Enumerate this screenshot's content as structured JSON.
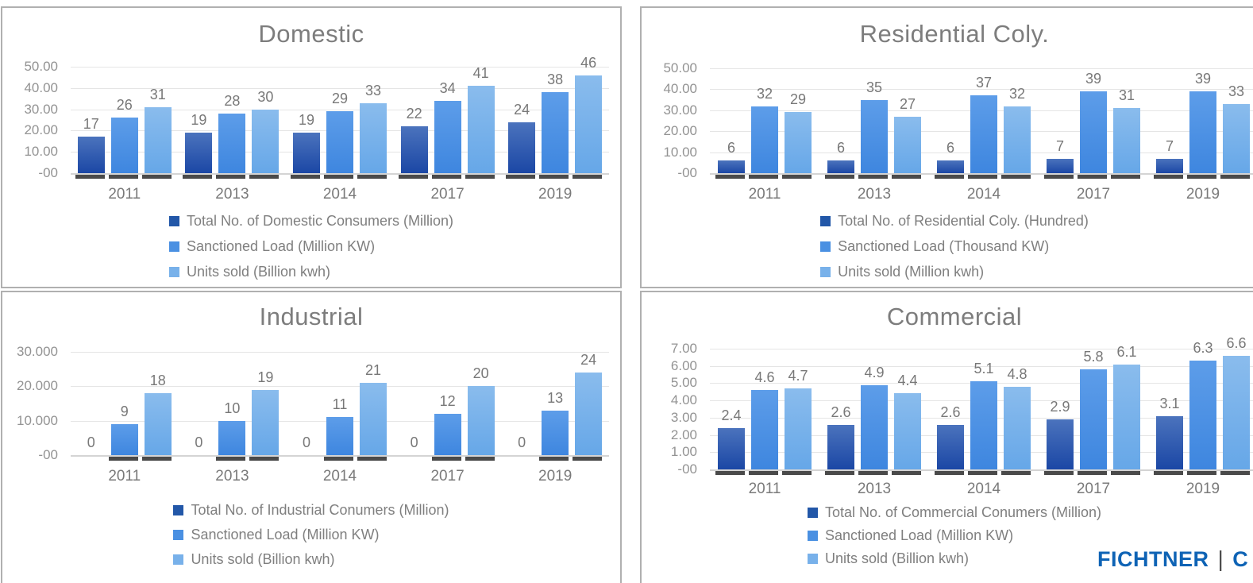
{
  "page": {
    "background": "#ffffff"
  },
  "footer": {
    "brand": "FICHTNER",
    "divider": "|",
    "partial_next_letter": "C",
    "brand_color": "#0e63b5",
    "divider_color": "#4d4d4d"
  },
  "palette": {
    "grid_line": "#e5e5e5",
    "axis_line": "#d4d4d4",
    "shadow": "#4a4a4a",
    "panel_border": "#b0b0b0",
    "title_text": "#7d7d7d",
    "tick_text": "#939393",
    "year_text": "#7a7a7a",
    "value_text": "#787878",
    "legend_text": "#7f7f7f",
    "series": [
      {
        "swatch": "#2257a8",
        "grad_top": "#4b73bd",
        "grad_bottom": "#1b47a5"
      },
      {
        "swatch": "#4a90e2",
        "grad_top": "#5d9de9",
        "grad_bottom": "#3e86df"
      },
      {
        "swatch": "#78b1ea",
        "grad_top": "#8abced",
        "grad_bottom": "#66a7e8"
      }
    ]
  },
  "chart_data": [
    {
      "type": "bar",
      "title": "Domestic",
      "categories": [
        "2011",
        "2013",
        "2014",
        "2017",
        "2019"
      ],
      "y_ticks": [
        "50.00",
        "40.00",
        "30.00",
        "20.00",
        "10.00",
        "-00"
      ],
      "ylim": [
        0,
        50
      ],
      "grid": true,
      "legend_position": "bottom",
      "series": [
        {
          "name": "Total No. of Domestic Consumers (Million)",
          "values": [
            17,
            19,
            19,
            22,
            24
          ]
        },
        {
          "name": "Sanctioned Load (Million KW)",
          "values": [
            26,
            28,
            29,
            34,
            38
          ]
        },
        {
          "name": "Units sold (Billion kwh)",
          "values": [
            31,
            30,
            33,
            41,
            46
          ]
        }
      ]
    },
    {
      "type": "bar",
      "title": "Residential Coly.",
      "categories": [
        "2011",
        "2013",
        "2014",
        "2017",
        "2019"
      ],
      "y_ticks": [
        "50.00",
        "40.00",
        "30.00",
        "20.00",
        "10.00",
        "-00"
      ],
      "ylim": [
        0,
        50
      ],
      "grid": true,
      "legend_position": "bottom",
      "series": [
        {
          "name": "Total No. of Residential Coly. (Hundred)",
          "values": [
            6,
            6,
            6,
            7,
            7
          ]
        },
        {
          "name": "Sanctioned Load (Thousand KW)",
          "values": [
            32,
            35,
            37,
            39,
            39
          ]
        },
        {
          "name": "Units sold (Million kwh)",
          "values": [
            29,
            27,
            32,
            31,
            33
          ]
        }
      ]
    },
    {
      "type": "bar",
      "title": "Industrial",
      "categories": [
        "2011",
        "2013",
        "2014",
        "2017",
        "2019"
      ],
      "y_ticks": [
        "30.000",
        "20.000",
        "10.000",
        "-00"
      ],
      "ylim": [
        0,
        30
      ],
      "grid": true,
      "legend_position": "bottom",
      "series": [
        {
          "name": "Total No. of Industrial Conumers (Million)",
          "values": [
            0,
            0,
            0,
            0,
            0
          ]
        },
        {
          "name": "Sanctioned Load (Million KW)",
          "values": [
            9,
            10,
            11,
            12,
            13
          ]
        },
        {
          "name": "Units sold (Billion kwh)",
          "values": [
            18,
            19,
            21,
            20,
            24
          ]
        }
      ]
    },
    {
      "type": "bar",
      "title": "Commercial",
      "categories": [
        "2011",
        "2013",
        "2014",
        "2017",
        "2019"
      ],
      "y_ticks": [
        "7.00",
        "6.00",
        "5.00",
        "4.00",
        "3.00",
        "2.00",
        "1.00",
        "-00"
      ],
      "ylim": [
        0,
        7
      ],
      "grid": true,
      "legend_position": "bottom",
      "series": [
        {
          "name": "Total No. of Commercial Conumers (Million)",
          "values": [
            2.4,
            2.6,
            2.6,
            2.9,
            3.1
          ]
        },
        {
          "name": "Sanctioned Load (Million KW)",
          "values": [
            4.6,
            4.9,
            5.1,
            5.8,
            6.3
          ]
        },
        {
          "name": "Units sold (Billion kwh)",
          "values": [
            4.7,
            4.4,
            4.8,
            6.1,
            6.6
          ]
        }
      ]
    }
  ]
}
